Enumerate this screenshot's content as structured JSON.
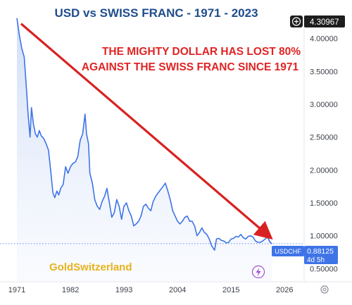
{
  "chart_data": {
    "type": "area",
    "title": "USD vs SWISS FRANC  - 1971 - 2023",
    "annotation_line1": "THE MIGHTY DOLLAR HAS LOST 80%",
    "annotation_line2": "AGAINST THE SWISS FRANC SINCE 1971",
    "watermark": "GoldSwitzerland",
    "xlabel": "",
    "ylabel": "",
    "xlim": [
      1971,
      2030
    ],
    "ylim": [
      0.3,
      4.35
    ],
    "x_ticks": [
      "1971",
      "1982",
      "1993",
      "2004",
      "2015",
      "2026"
    ],
    "x_tick_values": [
      1971,
      1982,
      1993,
      2004,
      2015,
      2026
    ],
    "y_ticks": [
      "0.50000",
      "1.00000",
      "1.50000",
      "2.00000",
      "2.50000",
      "3.00000",
      "3.50000",
      "4.00000"
    ],
    "y_tick_values": [
      0.5,
      1.0,
      1.5,
      2.0,
      2.5,
      3.0,
      3.5,
      4.0
    ],
    "grid": false,
    "legend": "none",
    "max_label": "4.30967",
    "last_label": {
      "symbol": "USDCHF",
      "value": "0.88125",
      "countdown": "4d 5h"
    },
    "series": [
      {
        "x": [
          1971.0,
          1971.5,
          1972.0,
          1972.5,
          1973.0,
          1973.3,
          1973.7,
          1974.0,
          1974.4,
          1974.8,
          1975.2,
          1975.6,
          1976.0,
          1976.5,
          1977.0,
          1977.5,
          1978.0,
          1978.4,
          1978.8,
          1979.2,
          1979.6,
          1980.0,
          1980.5,
          1981.0,
          1981.5,
          1982.0,
          1982.5,
          1983.0,
          1983.5,
          1984.0,
          1984.5,
          1985.0,
          1985.3,
          1985.7,
          1986.0,
          1986.5,
          1987.0,
          1987.5,
          1988.0,
          1988.5,
          1989.0,
          1989.5,
          1990.0,
          1990.5,
          1991.0,
          1991.5,
          1992.0,
          1992.5,
          1993.0,
          1993.5,
          1994.0,
          1994.5,
          1995.0,
          1995.5,
          1996.0,
          1996.5,
          1997.0,
          1997.5,
          1998.0,
          1998.5,
          1999.0,
          1999.5,
          2000.0,
          2000.5,
          2001.0,
          2001.5,
          2002.0,
          2002.5,
          2003.0,
          2003.5,
          2004.0,
          2004.5,
          2005.0,
          2005.5,
          2006.0,
          2006.5,
          2007.0,
          2007.5,
          2008.0,
          2008.5,
          2009.0,
          2009.5,
          2010.0,
          2010.5,
          2011.0,
          2011.6,
          2012.0,
          2012.5,
          2013.0,
          2013.5,
          2014.0,
          2014.5,
          2015.0,
          2015.5,
          2016.0,
          2016.5,
          2017.0,
          2017.5,
          2018.0,
          2018.5,
          2019.0,
          2019.5,
          2020.0,
          2020.5,
          2021.0,
          2021.5,
          2022.0,
          2022.5,
          2023.0,
          2023.4
        ],
        "values": [
          4.31,
          4.05,
          3.85,
          3.72,
          3.2,
          2.85,
          2.5,
          2.95,
          2.7,
          2.55,
          2.5,
          2.6,
          2.52,
          2.48,
          2.4,
          2.3,
          1.95,
          1.65,
          1.58,
          1.68,
          1.62,
          1.72,
          1.78,
          2.05,
          1.95,
          2.05,
          2.1,
          2.12,
          2.2,
          2.45,
          2.55,
          2.85,
          2.55,
          2.4,
          1.95,
          1.8,
          1.55,
          1.45,
          1.4,
          1.52,
          1.6,
          1.72,
          1.5,
          1.28,
          1.35,
          1.55,
          1.45,
          1.25,
          1.45,
          1.5,
          1.38,
          1.3,
          1.15,
          1.18,
          1.22,
          1.3,
          1.45,
          1.48,
          1.42,
          1.38,
          1.52,
          1.6,
          1.65,
          1.7,
          1.75,
          1.8,
          1.68,
          1.55,
          1.38,
          1.3,
          1.22,
          1.18,
          1.22,
          1.28,
          1.3,
          1.22,
          1.22,
          1.15,
          1.0,
          1.05,
          1.12,
          1.05,
          1.02,
          0.95,
          0.85,
          0.78,
          0.95,
          0.96,
          0.93,
          0.92,
          0.89,
          0.9,
          0.95,
          0.96,
          0.99,
          0.98,
          1.02,
          0.97,
          0.95,
          0.99,
          1.0,
          0.98,
          0.92,
          0.9,
          0.9,
          0.92,
          0.95,
          0.98,
          0.9,
          0.88
        ]
      }
    ]
  }
}
